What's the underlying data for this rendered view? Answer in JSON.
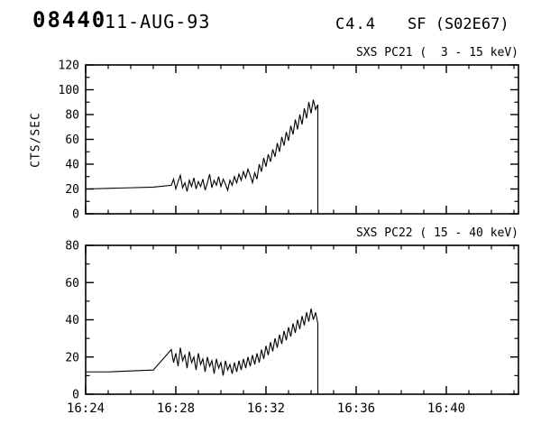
{
  "header": {
    "event_number": "08440",
    "date": "11-AUG-93",
    "goes_class": "C4.4",
    "flare_designation": "SF (S02E67)"
  },
  "chart_data": [
    {
      "type": "line",
      "name": "sxs-pc21",
      "title": "SXS PC21 (  3 - 15 keV)",
      "ylabel": "CTS/SEC",
      "ylim": [
        0,
        120
      ],
      "yticks": [
        0,
        20,
        40,
        60,
        80,
        100,
        120
      ],
      "yminor": 10,
      "xlim_minutes": [
        0,
        19.2
      ],
      "x_start_time": "16:24",
      "xminor_minutes": 1,
      "xticks": [
        {
          "minute": 0,
          "label": "16:24"
        },
        {
          "minute": 4,
          "label": "16:28"
        },
        {
          "minute": 8,
          "label": "16:32"
        },
        {
          "minute": 12,
          "label": "16:36"
        },
        {
          "minute": 16,
          "label": "16:40"
        }
      ],
      "grid": false,
      "legend": "none",
      "series": [
        {
          "name": "SXS PC21 counts",
          "t": [
            0,
            1,
            2,
            3,
            3.8,
            3.9,
            4,
            4.1,
            4.2,
            4.3,
            4.4,
            4.5,
            4.6,
            4.7,
            4.8,
            4.9,
            5,
            5.1,
            5.2,
            5.3,
            5.4,
            5.5,
            5.6,
            5.7,
            5.8,
            5.9,
            6,
            6.1,
            6.2,
            6.3,
            6.4,
            6.5,
            6.6,
            6.7,
            6.8,
            6.9,
            7,
            7.1,
            7.2,
            7.3,
            7.4,
            7.5,
            7.6,
            7.7,
            7.8,
            7.9,
            8,
            8.1,
            8.2,
            8.3,
            8.4,
            8.5,
            8.6,
            8.7,
            8.8,
            8.9,
            9,
            9.1,
            9.2,
            9.3,
            9.4,
            9.5,
            9.6,
            9.7,
            9.8,
            9.9,
            10,
            10.1,
            10.2,
            10.3,
            10.3
          ],
          "v": [
            20,
            20.5,
            21,
            21.5,
            23,
            28,
            20,
            26,
            31,
            21,
            25,
            18,
            27,
            22,
            29,
            20,
            26,
            22,
            28,
            19,
            25,
            32,
            21,
            27,
            23,
            30,
            22,
            28,
            24,
            19,
            27,
            23,
            30,
            25,
            32,
            27,
            34,
            29,
            36,
            31,
            25,
            33,
            28,
            40,
            34,
            45,
            38,
            48,
            42,
            52,
            46,
            57,
            50,
            62,
            55,
            66,
            59,
            71,
            64,
            76,
            68,
            80,
            72,
            85,
            77,
            90,
            81,
            92,
            84,
            88,
            0
          ]
        }
      ]
    },
    {
      "type": "line",
      "name": "sxs-pc22",
      "title": "SXS PC22 ( 15 - 40 keV)",
      "ylabel": "",
      "ylim": [
        0,
        80
      ],
      "yticks": [
        0,
        20,
        40,
        60,
        80
      ],
      "yminor": 10,
      "xlim_minutes": [
        0,
        19.2
      ],
      "x_start_time": "16:24",
      "xminor_minutes": 1,
      "xticks": [
        {
          "minute": 0,
          "label": "16:24"
        },
        {
          "minute": 4,
          "label": "16:28"
        },
        {
          "minute": 8,
          "label": "16:32"
        },
        {
          "minute": 12,
          "label": "16:36"
        },
        {
          "minute": 16,
          "label": "16:40"
        }
      ],
      "grid": false,
      "legend": "none",
      "series": [
        {
          "name": "SXS PC22 counts",
          "t": [
            0,
            1,
            2,
            3,
            3.8,
            3.9,
            4,
            4.1,
            4.2,
            4.3,
            4.4,
            4.5,
            4.6,
            4.7,
            4.8,
            4.9,
            5,
            5.1,
            5.2,
            5.3,
            5.4,
            5.5,
            5.6,
            5.7,
            5.8,
            5.9,
            6,
            6.1,
            6.2,
            6.3,
            6.4,
            6.5,
            6.6,
            6.7,
            6.8,
            6.9,
            7,
            7.1,
            7.2,
            7.3,
            7.4,
            7.5,
            7.6,
            7.7,
            7.8,
            7.9,
            8,
            8.1,
            8.2,
            8.3,
            8.4,
            8.5,
            8.6,
            8.7,
            8.8,
            8.9,
            9,
            9.1,
            9.2,
            9.3,
            9.4,
            9.5,
            9.6,
            9.7,
            9.8,
            9.9,
            10,
            10.1,
            10.2,
            10.3,
            10.3
          ],
          "v": [
            12,
            12,
            12.5,
            13,
            24,
            17,
            22,
            15,
            25,
            18,
            21,
            14,
            23,
            17,
            20,
            13,
            22,
            16,
            19,
            12,
            20,
            15,
            18,
            11,
            19,
            14,
            17,
            10,
            18,
            13,
            16,
            11,
            17,
            12,
            18,
            13,
            19,
            14,
            20,
            15,
            21,
            16,
            22,
            17,
            24,
            19,
            26,
            21,
            28,
            23,
            30,
            25,
            32,
            27,
            34,
            29,
            36,
            31,
            38,
            33,
            40,
            35,
            42,
            37,
            44,
            39,
            46,
            40,
            44,
            38,
            0
          ]
        }
      ]
    }
  ],
  "colors": {
    "foreground": "#000000",
    "background": "#ffffff"
  }
}
